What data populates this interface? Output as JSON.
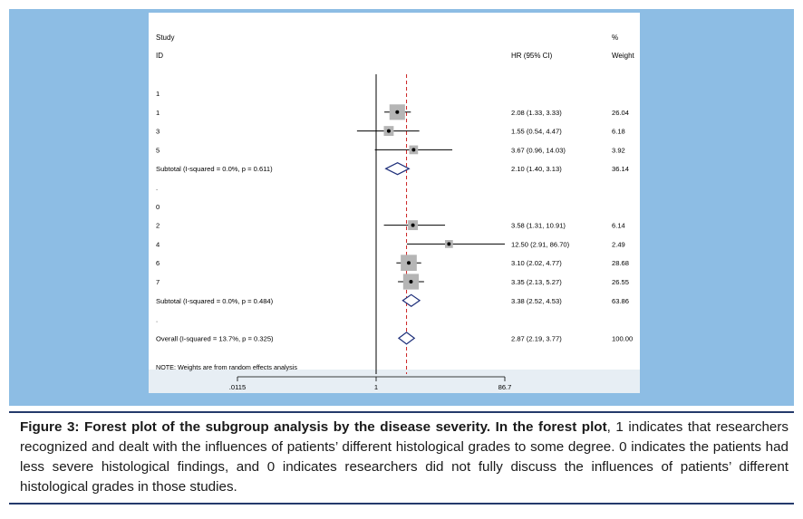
{
  "chart_data": {
    "type": "forest",
    "xscale": "log",
    "xlim": [
      0.0115,
      86.7
    ],
    "xticks": [
      {
        "value": 0.0115,
        "label": ".0115"
      },
      {
        "value": 1,
        "label": "1"
      },
      {
        "value": 86.7,
        "label": "86.7"
      }
    ],
    "null_line": 1,
    "overall_line": 2.87,
    "header": {
      "study_col_line1": "Study",
      "study_col_line2": "ID",
      "hr_col": "HR (95% CI)",
      "weight_col_line1": "%",
      "weight_col_line2": "Weight"
    },
    "rows": [
      {
        "kind": "group",
        "label": "1"
      },
      {
        "kind": "study",
        "label": "1",
        "hr": 2.08,
        "lo": 1.33,
        "hi": 3.33,
        "ci_text": "2.08 (1.33, 3.33)",
        "weight": 26.04,
        "weight_text": "26.04"
      },
      {
        "kind": "study",
        "label": "3",
        "hr": 1.55,
        "lo": 0.54,
        "hi": 4.47,
        "ci_text": "1.55 (0.54, 4.47)",
        "weight": 6.18,
        "weight_text": "6.18"
      },
      {
        "kind": "study",
        "label": "5",
        "hr": 3.67,
        "lo": 0.96,
        "hi": 14.03,
        "ci_text": "3.67 (0.96, 14.03)",
        "weight": 3.92,
        "weight_text": "3.92"
      },
      {
        "kind": "subtotal",
        "label": "Subtotal  (I-squared = 0.0%, p = 0.611)",
        "hr": 2.1,
        "lo": 1.4,
        "hi": 3.13,
        "ci_text": "2.10 (1.40, 3.13)",
        "weight": 36.14,
        "weight_text": "36.14"
      },
      {
        "kind": "spacer",
        "label": "."
      },
      {
        "kind": "group",
        "label": "0"
      },
      {
        "kind": "study",
        "label": "2",
        "hr": 3.58,
        "lo": 1.31,
        "hi": 10.91,
        "ci_text": "3.58 (1.31, 10.91)",
        "weight": 6.14,
        "weight_text": "6.14"
      },
      {
        "kind": "study",
        "label": "4",
        "hr": 12.5,
        "lo": 2.91,
        "hi": 86.7,
        "ci_text": "12.50 (2.91, 86.70)",
        "weight": 2.49,
        "weight_text": "2.49"
      },
      {
        "kind": "study",
        "label": "6",
        "hr": 3.1,
        "lo": 2.02,
        "hi": 4.77,
        "ci_text": "3.10 (2.02, 4.77)",
        "weight": 28.68,
        "weight_text": "28.68"
      },
      {
        "kind": "study",
        "label": "7",
        "hr": 3.35,
        "lo": 2.13,
        "hi": 5.27,
        "ci_text": "3.35 (2.13, 5.27)",
        "weight": 26.55,
        "weight_text": "26.55"
      },
      {
        "kind": "subtotal",
        "label": "Subtotal  (I-squared = 0.0%, p = 0.484)",
        "hr": 3.38,
        "lo": 2.52,
        "hi": 4.53,
        "ci_text": "3.38 (2.52, 4.53)",
        "weight": 63.86,
        "weight_text": "63.86"
      },
      {
        "kind": "spacer",
        "label": "."
      },
      {
        "kind": "overall",
        "label": "Overall  (I-squared = 13.7%, p = 0.325)",
        "hr": 2.87,
        "lo": 2.19,
        "hi": 3.77,
        "ci_text": "2.87 (2.19, 3.77)",
        "weight": 100.0,
        "weight_text": "100.00"
      }
    ],
    "note": "NOTE: Weights are from random effects analysis"
  },
  "caption": {
    "bold": "Figure 3: Forest plot of the subgroup analysis by the disease severity. In the forest plot",
    "rest": ", 1 indicates that researchers recognized and dealt with the influences of patients’ different histological grades to some degree. 0 indicates the patients had less severe histological findings, and 0 indicates researchers did not fully discuss the influences of patients’ different histological grades in those studies."
  },
  "colors": {
    "frame_bg": "#8dbde4",
    "axis_band": "#e7eef4",
    "weight_box": "#b5b5b5",
    "diamond": "#1e2f7a",
    "overall_line": "#cc2222",
    "rule": "#243a6b"
  }
}
